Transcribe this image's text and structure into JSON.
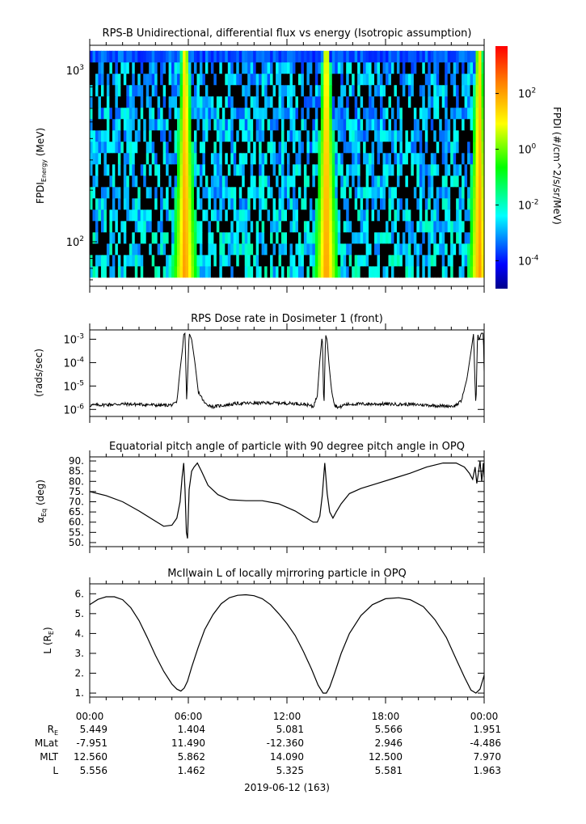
{
  "colors": {
    "line": "#000000",
    "background": "#ffffff"
  },
  "chart_data": [
    {
      "type": "heatmap",
      "title": "RPS-B  Unidirectional, differential flux vs energy (Isotropic assumption)",
      "ylabel": "FPDI",
      "ylabel_sub": "Energy",
      "ylabel_unit": "(MeV)",
      "yscale": "log",
      "ylim": [
        55,
        1400
      ],
      "y_ticks": [
        {
          "value": 100,
          "base": "10",
          "exp": "2"
        },
        {
          "value": 1000,
          "base": "10",
          "exp": "3"
        }
      ],
      "colorbar": {
        "label": "FPDI (#/cm^2/s/sr/MeV)",
        "scale": "log",
        "range": [
          1e-05,
          5000
        ],
        "ticks": [
          {
            "value": 0.0001,
            "base": "10",
            "exp": "-4"
          },
          {
            "value": 0.01,
            "base": "10",
            "exp": "-2"
          },
          {
            "value": 1,
            "base": "10",
            "exp": "0"
          },
          {
            "value": 100,
            "base": "10",
            "exp": "2"
          }
        ],
        "colormap": [
          "#00008b",
          "#0000ff",
          "#00ffff",
          "#00ff00",
          "#ffff00",
          "#ff8000",
          "#ff0000"
        ]
      },
      "bands": [
        {
          "center_hour": 5.8,
          "half_width_top": 0.25,
          "half_width_bottom": 0.8,
          "peak_log": 2.3
        },
        {
          "center_hour": 14.4,
          "half_width_top": 0.25,
          "half_width_bottom": 0.8,
          "peak_log": 2.3
        },
        {
          "center_hour": 23.7,
          "half_width_top": 0.25,
          "half_width_bottom": 0.7,
          "peak_log": 2.3
        }
      ]
    },
    {
      "type": "line",
      "title": "RPS  Dose rate in Dosimeter 1 (front)",
      "ylabel": "(rads/sec)",
      "yscale": "log",
      "ylim": [
        5e-07,
        0.0025
      ],
      "y_ticks": [
        {
          "value": 1e-06,
          "base": "10",
          "exp": "-6"
        },
        {
          "value": 1e-05,
          "base": "10",
          "exp": "-5"
        },
        {
          "value": 0.0001,
          "base": "10",
          "exp": "-4"
        },
        {
          "value": 0.001,
          "base": "10",
          "exp": "-3"
        }
      ],
      "x": [
        0,
        2,
        3.5,
        4.2,
        4.7,
        5.1,
        5.3,
        5.5,
        5.65,
        5.72,
        5.8,
        5.9,
        6.05,
        6.2,
        6.4,
        6.6,
        7.0,
        7.5,
        9,
        11,
        12.5,
        13.2,
        13.6,
        13.85,
        14.0,
        14.15,
        14.25,
        14.35,
        14.45,
        14.55,
        14.7,
        14.9,
        15.2,
        15.5,
        16,
        18,
        20,
        21.5,
        22.2,
        22.6,
        22.95,
        23.2,
        23.35,
        23.5,
        23.6,
        23.7,
        23.82,
        23.95,
        24.0
      ],
      "values": [
        1.5e-06,
        1.7e-06,
        1.6e-06,
        1.5e-06,
        1.5e-06,
        1.6e-06,
        2e-06,
        5e-05,
        0.0004,
        0.0016,
        0.0018,
        2e-06,
        0.0018,
        0.001,
        0.0001,
        6e-06,
        1.8e-06,
        1.3e-06,
        1.8e-06,
        1.9e-06,
        1.8e-06,
        1.6e-06,
        1.3e-06,
        4e-06,
        0.00012,
        0.0016,
        1e-06,
        0.0016,
        0.0009,
        0.0001,
        8e-06,
        1.5e-06,
        1.2e-06,
        1.6e-06,
        1.7e-06,
        1.7e-06,
        1.6e-06,
        1.4e-06,
        1.4e-06,
        2.2e-06,
        2e-05,
        0.0003,
        0.0017,
        1e-06,
        0.0018,
        0.0009,
        0.0018,
        0.0018,
        4e-05
      ]
    },
    {
      "type": "line",
      "title": "Equatorial pitch angle of particle with 90 degree pitch angle in OPQ",
      "ylabel": "α",
      "ylabel_sub": "Eq",
      "ylabel_unit": "(deg)",
      "ylim": [
        48,
        92
      ],
      "y_ticks": [
        {
          "value": 50,
          "label": "50."
        },
        {
          "value": 55,
          "label": "55."
        },
        {
          "value": 60,
          "label": "60."
        },
        {
          "value": 65,
          "label": "65."
        },
        {
          "value": 70,
          "label": "70."
        },
        {
          "value": 75,
          "label": "75."
        },
        {
          "value": 80,
          "label": "80."
        },
        {
          "value": 85,
          "label": "85."
        },
        {
          "value": 90,
          "label": "90."
        }
      ],
      "x": [
        0,
        1,
        2,
        3,
        4,
        4.5,
        5.0,
        5.3,
        5.5,
        5.62,
        5.72,
        5.8,
        5.88,
        5.95,
        6.05,
        6.2,
        6.35,
        6.55,
        6.8,
        7.2,
        7.8,
        8.5,
        9.5,
        10.5,
        11.5,
        12.5,
        13.2,
        13.6,
        13.85,
        14.0,
        14.15,
        14.3,
        14.45,
        14.6,
        14.8,
        15.0,
        15.3,
        15.8,
        16.5,
        17.5,
        18.5,
        19.5,
        20.5,
        21.5,
        22.3,
        22.8,
        23.1,
        23.3,
        23.45,
        23.55,
        23.65,
        23.75,
        23.85,
        23.95,
        24.0
      ],
      "values": [
        75,
        73,
        70,
        65.5,
        60.5,
        58,
        58.5,
        62,
        70,
        82,
        89,
        76,
        55,
        52,
        76,
        85,
        87,
        89,
        85,
        78,
        73.5,
        71,
        70.5,
        70.5,
        69,
        65.5,
        62,
        60,
        60,
        63,
        73,
        89,
        74,
        65,
        62,
        65,
        69,
        74,
        76.5,
        79,
        81.5,
        84,
        87,
        89,
        89,
        87,
        84,
        81,
        87,
        79,
        84,
        90,
        80,
        89,
        82
      ]
    },
    {
      "type": "line",
      "title": "McIlwain L of locally mirroring particle in OPQ",
      "ylabel": "L (R",
      "ylabel_sub": "E",
      "ylabel_unit": ")",
      "ylim": [
        0.8,
        6.5
      ],
      "y_ticks": [
        {
          "value": 1,
          "label": "1."
        },
        {
          "value": 2,
          "label": "2."
        },
        {
          "value": 3,
          "label": "3."
        },
        {
          "value": 4,
          "label": "4."
        },
        {
          "value": 5,
          "label": "5."
        },
        {
          "value": 6,
          "label": "6."
        }
      ],
      "x": [
        0,
        0.5,
        1,
        1.5,
        2,
        2.5,
        3,
        3.5,
        4,
        4.5,
        5.0,
        5.3,
        5.55,
        5.75,
        5.95,
        6.2,
        6.6,
        7,
        7.5,
        8,
        8.5,
        9,
        9.5,
        10,
        10.5,
        11,
        11.5,
        12,
        12.5,
        13,
        13.5,
        13.9,
        14.2,
        14.4,
        14.6,
        14.9,
        15.3,
        15.8,
        16.5,
        17.2,
        18,
        18.8,
        19.5,
        20.3,
        21,
        21.7,
        22.3,
        22.8,
        23.2,
        23.5,
        23.75,
        24.0
      ],
      "values": [
        5.45,
        5.72,
        5.85,
        5.85,
        5.7,
        5.3,
        4.65,
        3.8,
        2.9,
        2.1,
        1.45,
        1.2,
        1.1,
        1.25,
        1.6,
        2.3,
        3.3,
        4.2,
        4.95,
        5.5,
        5.8,
        5.92,
        5.95,
        5.9,
        5.75,
        5.45,
        5.0,
        4.5,
        3.9,
        3.1,
        2.2,
        1.4,
        1.0,
        1.0,
        1.3,
        2.0,
        3.0,
        4.0,
        4.9,
        5.45,
        5.75,
        5.8,
        5.7,
        5.35,
        4.7,
        3.8,
        2.7,
        1.8,
        1.15,
        1.0,
        1.2,
        1.9
      ]
    }
  ],
  "x_axis": {
    "tick_labels": [
      "00:00",
      "06:00",
      "12:00",
      "18:00",
      "00:00"
    ],
    "major_ticks_hours": [
      0,
      6,
      12,
      18,
      24
    ],
    "minor_tick_step_hours": 1,
    "date_label": "2019-06-12 (163)"
  },
  "ephemeris": {
    "rows": [
      {
        "label": "R",
        "label_sub": "E",
        "values": [
          "5.449",
          "1.404",
          "5.081",
          "5.566",
          "1.951"
        ]
      },
      {
        "label": "MLat",
        "label_sub": "",
        "values": [
          "-7.951",
          "11.490",
          "-12.360",
          "2.946",
          "-4.486"
        ]
      },
      {
        "label": "MLT",
        "label_sub": "",
        "values": [
          "12.560",
          "5.862",
          "14.090",
          "12.500",
          "7.970"
        ]
      },
      {
        "label": "L",
        "label_sub": "",
        "values": [
          "5.556",
          "1.462",
          "5.325",
          "5.581",
          "1.963"
        ]
      }
    ]
  }
}
